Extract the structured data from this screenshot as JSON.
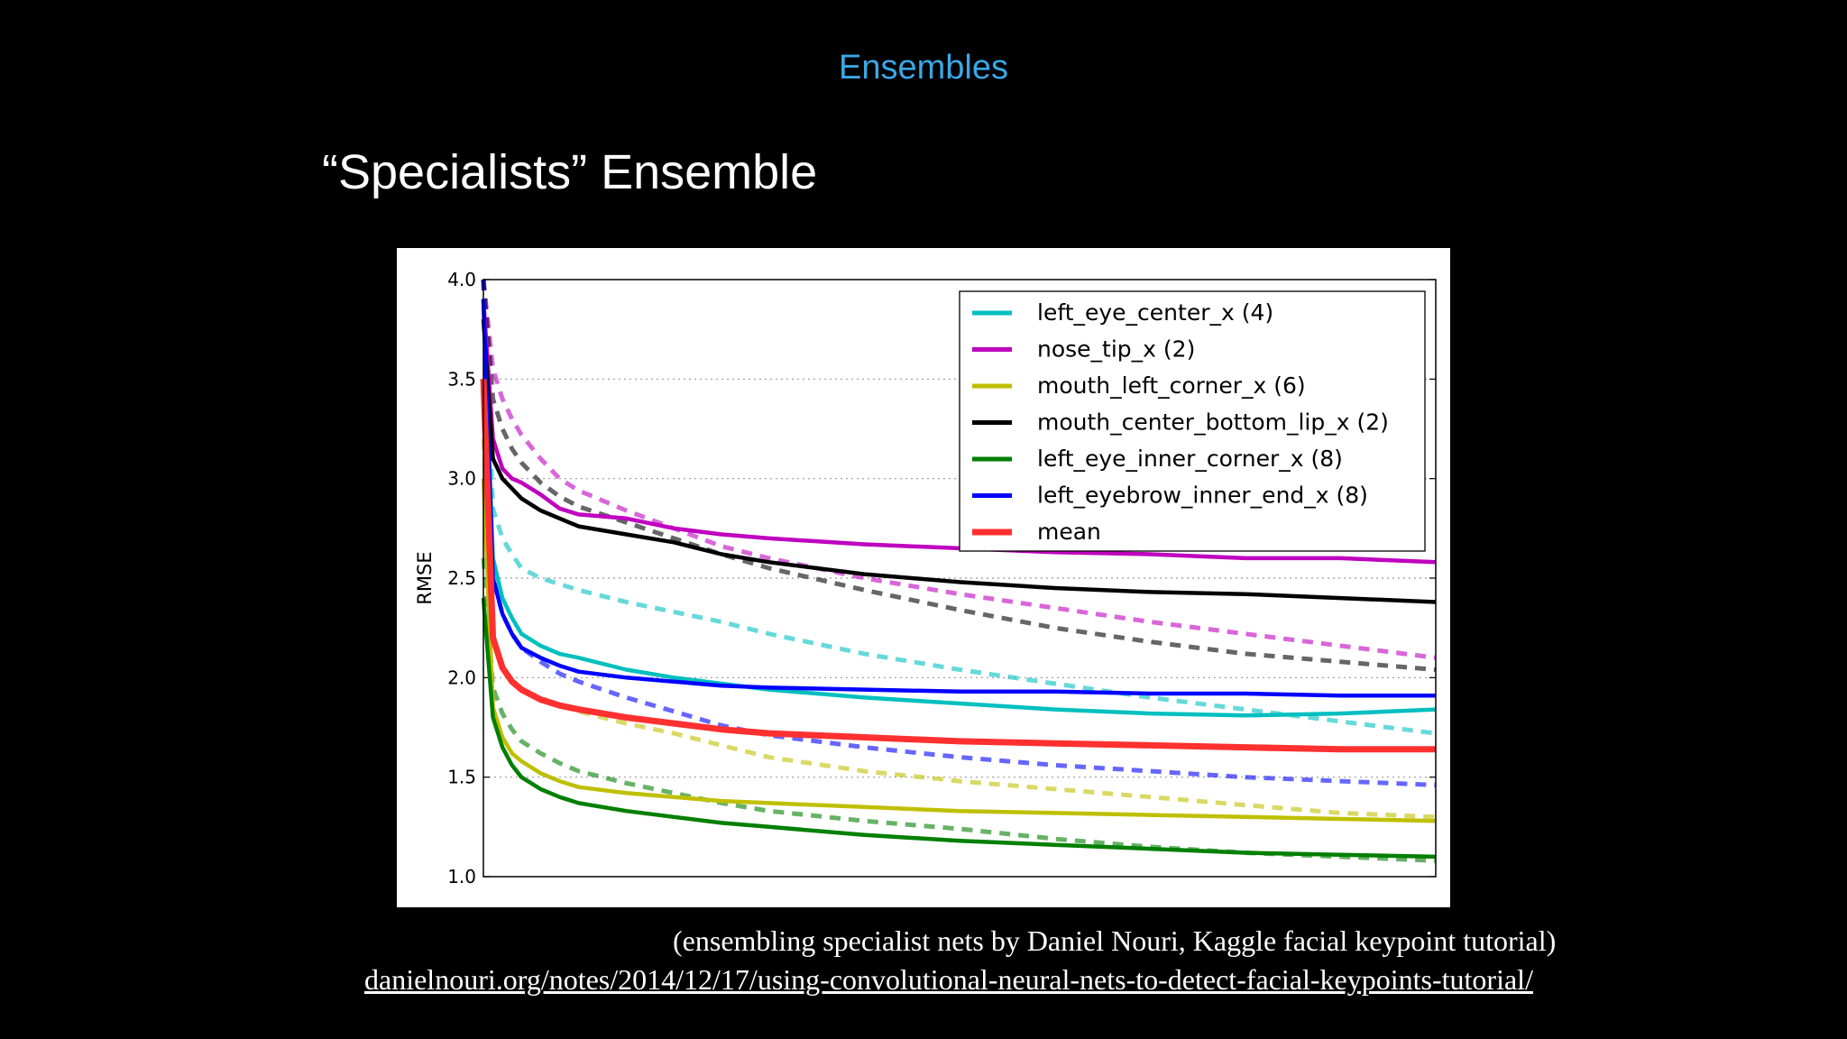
{
  "header": {
    "section": "Ensembles",
    "title": "“Specialists” Ensemble"
  },
  "footer": {
    "caption": "(ensembling specialist nets by Daniel Nouri, Kaggle facial keypoint tutorial)",
    "url": "danielnouri.org/notes/2014/12/17/using-convolutional-neural-nets-to-detect-facial-keypoints-tutorial/"
  },
  "chart_data": {
    "type": "line",
    "title": "",
    "xlabel": "",
    "ylabel": "RMSE",
    "xlim": [
      0,
      100
    ],
    "ylim": [
      1.0,
      4.0
    ],
    "yticks": [
      1.0,
      1.5,
      2.0,
      2.5,
      3.0,
      3.5,
      4.0
    ],
    "ytick_labels": [
      "1.0",
      "1.5",
      "2.0",
      "2.5",
      "3.0",
      "3.5",
      "4.0"
    ],
    "grid": "horizontal-dotted",
    "legend_position": "top-right",
    "x": [
      0,
      1,
      2,
      3,
      4,
      6,
      8,
      10,
      15,
      20,
      25,
      30,
      40,
      50,
      60,
      70,
      80,
      90,
      100
    ],
    "series": [
      {
        "name": "left_eye_center_x (4)",
        "color": "#00bfbf",
        "values": [
          3.9,
          2.6,
          2.4,
          2.3,
          2.22,
          2.16,
          2.12,
          2.1,
          2.04,
          2.0,
          1.97,
          1.94,
          1.9,
          1.87,
          1.84,
          1.82,
          1.81,
          1.82,
          1.84
        ],
        "dashed_values": [
          4.0,
          2.85,
          2.7,
          2.62,
          2.55,
          2.5,
          2.47,
          2.44,
          2.38,
          2.33,
          2.28,
          2.22,
          2.12,
          2.04,
          1.97,
          1.9,
          1.84,
          1.78,
          1.72
        ]
      },
      {
        "name": "nose_tip_x (2)",
        "color": "#bf00bf",
        "values": [
          3.9,
          3.2,
          3.05,
          3.0,
          2.98,
          2.92,
          2.85,
          2.82,
          2.8,
          2.75,
          2.72,
          2.7,
          2.67,
          2.65,
          2.63,
          2.62,
          2.6,
          2.6,
          2.58
        ],
        "dashed_values": [
          4.0,
          3.55,
          3.4,
          3.3,
          3.22,
          3.1,
          3.0,
          2.94,
          2.84,
          2.75,
          2.66,
          2.6,
          2.5,
          2.42,
          2.35,
          2.28,
          2.22,
          2.16,
          2.1
        ]
      },
      {
        "name": "mouth_left_corner_x (6)",
        "color": "#bfbf00",
        "values": [
          3.0,
          1.85,
          1.7,
          1.62,
          1.58,
          1.52,
          1.48,
          1.45,
          1.42,
          1.4,
          1.38,
          1.37,
          1.35,
          1.33,
          1.32,
          1.31,
          1.3,
          1.29,
          1.28
        ],
        "dashed_values": [
          3.2,
          2.2,
          2.05,
          1.98,
          1.94,
          1.9,
          1.86,
          1.83,
          1.77,
          1.72,
          1.66,
          1.6,
          1.53,
          1.48,
          1.44,
          1.4,
          1.36,
          1.32,
          1.3
        ]
      },
      {
        "name": "mouth_center_bottom_lip_x (2)",
        "color": "#000000",
        "values": [
          3.8,
          3.1,
          3.0,
          2.95,
          2.9,
          2.84,
          2.8,
          2.76,
          2.72,
          2.68,
          2.62,
          2.58,
          2.52,
          2.48,
          2.45,
          2.43,
          2.42,
          2.4,
          2.38
        ],
        "dashed_values": [
          4.0,
          3.4,
          3.25,
          3.15,
          3.08,
          2.98,
          2.91,
          2.86,
          2.78,
          2.7,
          2.62,
          2.55,
          2.44,
          2.34,
          2.25,
          2.18,
          2.12,
          2.08,
          2.04
        ]
      },
      {
        "name": "left_eye_inner_corner_x (8)",
        "color": "#007f00",
        "values": [
          2.4,
          1.8,
          1.65,
          1.56,
          1.5,
          1.44,
          1.4,
          1.37,
          1.33,
          1.3,
          1.27,
          1.25,
          1.21,
          1.18,
          1.16,
          1.14,
          1.12,
          1.11,
          1.1
        ],
        "dashed_values": [
          2.6,
          1.95,
          1.82,
          1.74,
          1.68,
          1.62,
          1.57,
          1.53,
          1.47,
          1.42,
          1.37,
          1.33,
          1.28,
          1.24,
          1.19,
          1.15,
          1.12,
          1.1,
          1.08
        ]
      },
      {
        "name": "left_eyebrow_inner_end_x (8)",
        "color": "#0000ff",
        "values": [
          3.9,
          2.5,
          2.32,
          2.22,
          2.15,
          2.1,
          2.06,
          2.03,
          2.0,
          1.98,
          1.96,
          1.95,
          1.94,
          1.93,
          1.93,
          1.92,
          1.92,
          1.91,
          1.91
        ],
        "dashed_values": [
          4.0,
          2.5,
          2.32,
          2.22,
          2.15,
          2.08,
          2.02,
          1.98,
          1.9,
          1.83,
          1.76,
          1.71,
          1.65,
          1.6,
          1.56,
          1.53,
          1.5,
          1.48,
          1.46
        ]
      },
      {
        "name": "mean",
        "color": "#ff3030",
        "values": [
          3.5,
          2.2,
          2.05,
          1.98,
          1.94,
          1.89,
          1.86,
          1.84,
          1.8,
          1.77,
          1.74,
          1.72,
          1.7,
          1.68,
          1.67,
          1.66,
          1.65,
          1.64,
          1.64
        ]
      }
    ]
  }
}
